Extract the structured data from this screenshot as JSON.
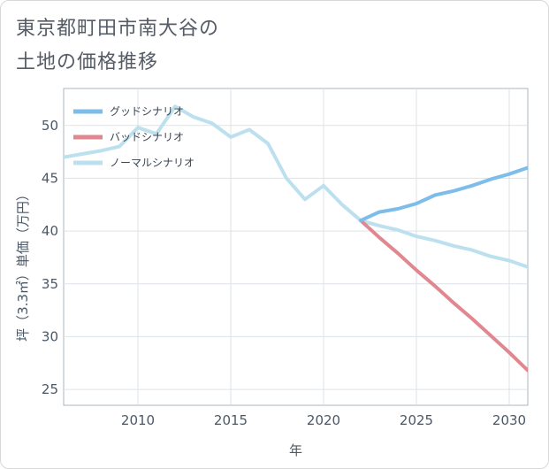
{
  "title": {
    "line1": "東京都町田市南大谷の",
    "line2": "土地の価格推移"
  },
  "chart_data": {
    "type": "line",
    "xlabel": "年",
    "ylabel": "坪（3.3㎡）単価（万円）",
    "xlim": [
      2006,
      2031
    ],
    "ylim": [
      23.5,
      53.5
    ],
    "x_ticks": [
      2010,
      2015,
      2020,
      2025,
      2030
    ],
    "y_ticks": [
      25,
      30,
      35,
      40,
      45,
      50
    ],
    "grid": true,
    "legend_position": "top-left",
    "series": [
      {
        "name": "グッドシナリオ",
        "color": "#7dbdea",
        "x": [
          2022,
          2023,
          2024,
          2025,
          2026,
          2027,
          2028,
          2029,
          2030,
          2031
        ],
        "y": [
          41.0,
          41.8,
          42.1,
          42.6,
          43.4,
          43.8,
          44.3,
          44.9,
          45.4,
          46.0
        ]
      },
      {
        "name": "バッドシナリオ",
        "color": "#e0878f",
        "x": [
          2022,
          2023,
          2024,
          2025,
          2026,
          2027,
          2028,
          2029,
          2030,
          2031
        ],
        "y": [
          41.0,
          39.4,
          37.9,
          36.3,
          34.8,
          33.2,
          31.7,
          30.1,
          28.5,
          26.8
        ]
      },
      {
        "name": "ノーマルシナリオ",
        "color": "#bde0ee",
        "x": [
          2006,
          2007,
          2008,
          2009,
          2010,
          2011,
          2012,
          2013,
          2014,
          2015,
          2016,
          2017,
          2018,
          2019,
          2020,
          2021,
          2022,
          2023,
          2024,
          2025,
          2026,
          2027,
          2028,
          2029,
          2030,
          2031
        ],
        "y": [
          47.0,
          47.3,
          47.6,
          48.0,
          49.8,
          49.2,
          51.8,
          50.8,
          50.2,
          48.9,
          49.6,
          48.3,
          45.0,
          43.0,
          44.3,
          42.5,
          41.0,
          40.5,
          40.1,
          39.5,
          39.1,
          38.6,
          38.2,
          37.6,
          37.2,
          36.6
        ]
      }
    ]
  }
}
